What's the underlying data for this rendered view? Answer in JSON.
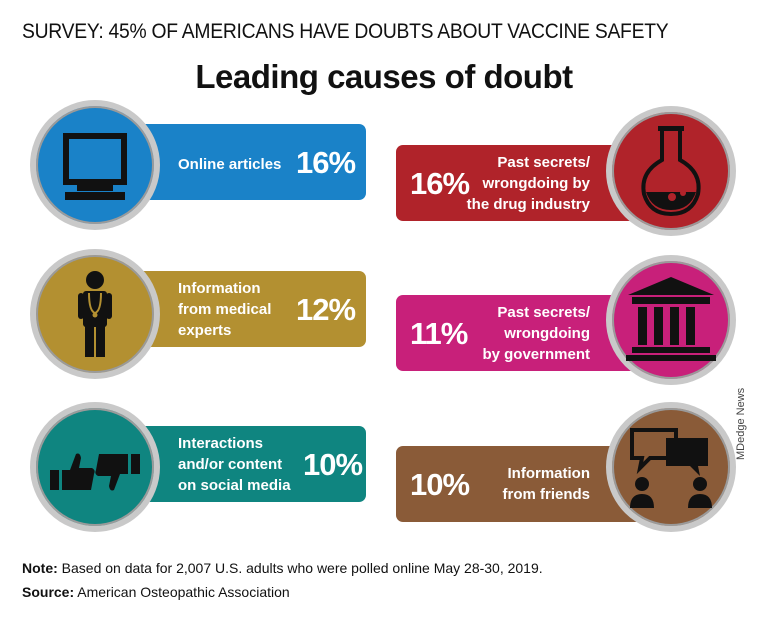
{
  "header": {
    "title": "SURVEY: 45% OF AMERICANS HAVE DOUBTS ABOUT VACCINE SAFETY",
    "subtitle": "Leading causes of doubt"
  },
  "causes": [
    {
      "label": "Online articles",
      "percent": "16%",
      "color": "#1a82c8",
      "icon": "computer-monitor-icon"
    },
    {
      "label": "Information from medical experts",
      "lines": [
        "Information",
        "from medical",
        "experts"
      ],
      "percent": "12%",
      "color": "#b39031",
      "icon": "doctor-icon"
    },
    {
      "label": "Interactions and/or content on social media",
      "lines": [
        "Interactions",
        "and/or content",
        "on social media"
      ],
      "percent": "10%",
      "color": "#0f8580",
      "icon": "thumbs-up-down-icon"
    },
    {
      "label": "Past secrets/ wrongdoing by the drug industry",
      "lines": [
        "Past secrets/",
        "wrongdoing by",
        "the drug industry"
      ],
      "percent": "16%",
      "color": "#b0232a",
      "icon": "flask-icon"
    },
    {
      "label": "Past secrets/ wrongdoing by government",
      "lines": [
        "Past secrets/",
        "wrongdoing",
        "by government"
      ],
      "percent": "11%",
      "color": "#c8207a",
      "icon": "government-building-icon"
    },
    {
      "label": "Information from friends",
      "lines": [
        "Information",
        "from friends"
      ],
      "percent": "10%",
      "color": "#8a5b38",
      "icon": "speech-bubbles-icon"
    }
  ],
  "footer": {
    "note_label": "Note:",
    "note_text": " Based on data for 2,007 U.S. adults who were polled online May 28-30, 2019.",
    "source_label": "Source:",
    "source_text": " American Osteopathic Association",
    "credit": "MDedge News"
  }
}
